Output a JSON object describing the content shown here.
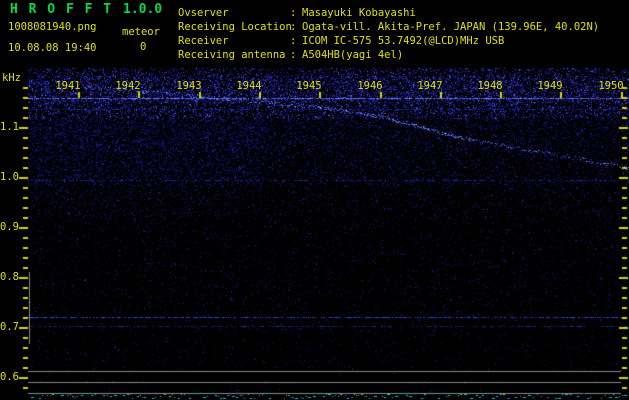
{
  "header": {
    "app_title": "H R O F F T",
    "version": "1.0.0",
    "filename": "1008081940.png",
    "mode_label": "meteor",
    "meteor_count": "0",
    "timestamp": "10.08.08 19:40",
    "info_separator": ":",
    "info_rows": [
      {
        "label": "Ovserver",
        "value": "Masayuki Kobayashi"
      },
      {
        "label": "Receiving Location",
        "value": "Ogata-vill. Akita-Pref. JAPAN (139.96E, 40.02N)"
      },
      {
        "label": "Receiver",
        "value": "ICOM IC-575 53.7492(@LCD)MHz USB"
      },
      {
        "label": "Receiving antenna",
        "value": "A504HB(yagi 4el)"
      }
    ]
  },
  "colors": {
    "accent_green": "#00d948",
    "accent_yellow": "#e0e000",
    "tick_yellow": "#d8d800",
    "noise_blue": "#2929c8",
    "gray_line": "#8a8a8a",
    "cyan_trace": "#00ccd8",
    "background": "#000000"
  },
  "chart_data": {
    "type": "heatmap",
    "title": "HROFFT radio-meteor spectrogram, 19:41-19:50",
    "x_axis": {
      "label": "",
      "tick_labels": [
        "1941",
        "1942",
        "1943",
        "1944",
        "1945",
        "1946",
        "1947",
        "1948",
        "1949",
        "1950"
      ],
      "minutes_per_tick": 1
    },
    "y_axis": {
      "label": "kHz",
      "tick_labels": [
        "1.1",
        "1.0",
        "0.9",
        "0.8",
        "0.7",
        "0.6"
      ],
      "range_khz": [
        0.56,
        1.22
      ],
      "minor_tick_step_khz": 0.02
    },
    "legend": "none",
    "grid": "off",
    "features": {
      "noise_field": "dense blue speckle band near 1.10-1.20 kHz fading toward lower frequencies",
      "horizontal_lines": [
        {
          "khz": 1.158,
          "strength": "bright"
        },
        {
          "khz": 1.136,
          "strength": "faint"
        },
        {
          "khz": 0.994,
          "strength": "faint"
        },
        {
          "khz": 0.72,
          "strength": "medium"
        },
        {
          "khz": 0.702,
          "strength": "faint"
        }
      ],
      "drift_trace": {
        "note": "carrier slowly drifting downward across the 10 minutes",
        "points_min_khz": [
          [
            1.45,
            1.18
          ],
          [
            3.19,
            1.162
          ],
          [
            5.2,
            1.14
          ],
          [
            6.17,
            1.122
          ],
          [
            7.55,
            1.078
          ],
          [
            8.66,
            1.054
          ],
          [
            10.3,
            1.02
          ]
        ]
      },
      "gray_lines_khz": [
        0.612,
        0.59,
        0.568
      ],
      "vertical_line": {
        "khz_from": 0.81,
        "khz_to": 0.666
      },
      "signal_level_trace": "noisy cyan baseline along the bottom edge"
    }
  }
}
